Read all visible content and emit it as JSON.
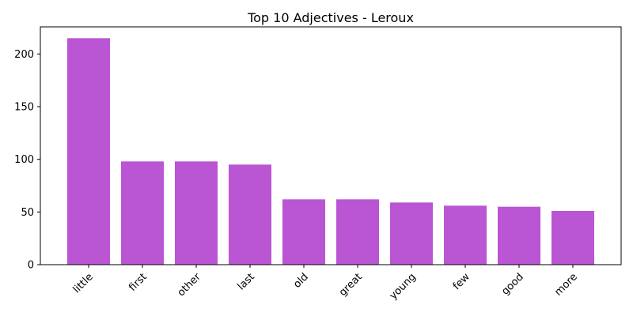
{
  "chart_data": {
    "type": "bar",
    "title": "Top 10 Adjectives - Leroux",
    "xlabel": "",
    "ylabel": "",
    "categories": [
      "little",
      "first",
      "other",
      "last",
      "old",
      "great",
      "young",
      "few",
      "good",
      "more"
    ],
    "values": [
      215,
      98,
      98,
      95,
      62,
      62,
      59,
      56,
      55,
      51
    ],
    "ylim": [
      0,
      225.75
    ],
    "yticks": [
      0,
      50,
      100,
      150,
      200
    ],
    "bar_color": "#ba55d3",
    "grid": false,
    "legend": "none"
  }
}
